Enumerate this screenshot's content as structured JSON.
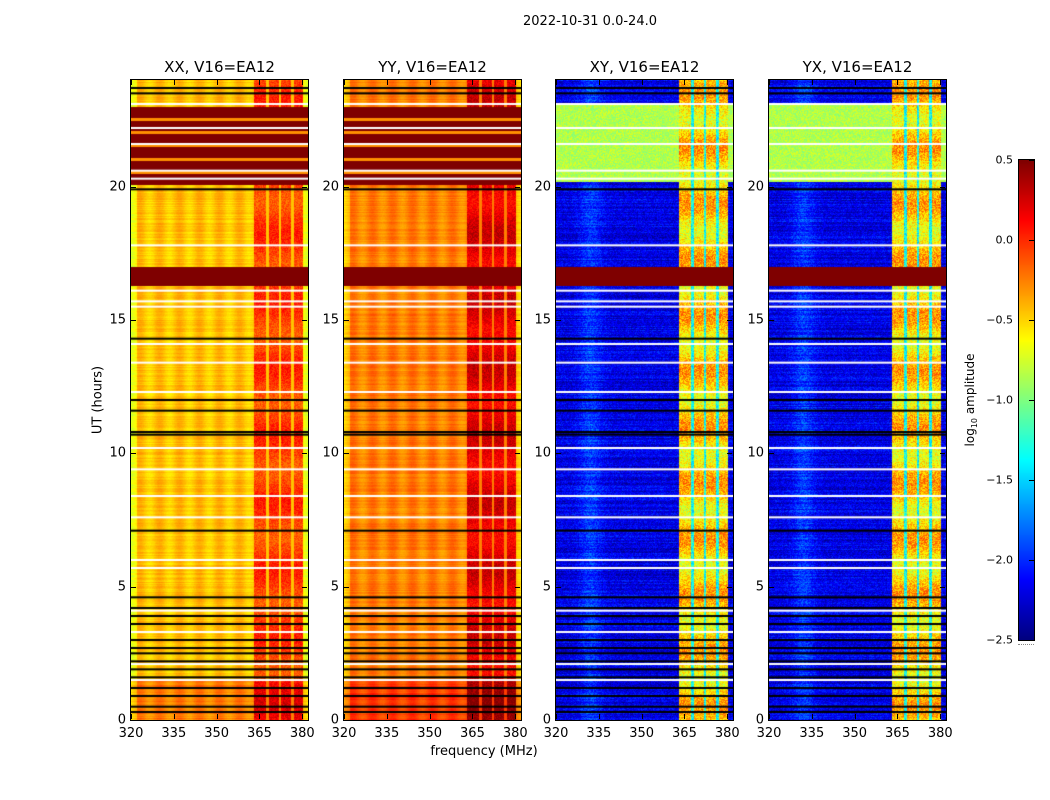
{
  "figure": {
    "suptitle": "2022-10-31 0.0-24.0",
    "xlabel": "frequency (MHz)",
    "ylabel": "UT (hours)",
    "colorbar": {
      "label_prefix": "log",
      "label_sub": "10",
      "label_suffix": " amplitude",
      "ticks": [
        "0.5",
        "0.0",
        "−0.5",
        "−1.0",
        "−1.5",
        "−2.0",
        "−2.5"
      ],
      "tick_values": [
        0.5,
        0.0,
        -0.5,
        -1.0,
        -1.5,
        -2.0,
        -2.5
      ],
      "range": [
        -2.5,
        0.5
      ],
      "colormap": "jet"
    }
  },
  "chart_data": {
    "type": "heatmap",
    "title": "2022-10-31 0.0-24.0",
    "xlabel": "frequency (MHz)",
    "ylabel": "UT (hours)",
    "xlim": [
      320,
      382
    ],
    "ylim": [
      0,
      24
    ],
    "xticks": [
      "320",
      "335",
      "350",
      "365",
      "380"
    ],
    "xtick_values": [
      320,
      335,
      350,
      365,
      380
    ],
    "yticks": [
      "0",
      "5",
      "10",
      "15",
      "20"
    ],
    "ytick_values": [
      0,
      5,
      10,
      15,
      20
    ],
    "color_range": [
      -2.5,
      0.5
    ],
    "colorbar_label": "log10 amplitude",
    "rfi_band_mhz": [
      363,
      380
    ],
    "rfi_gaps_mhz": [
      367.5,
      372,
      376.5
    ],
    "panels": [
      {
        "name": "XX",
        "title": "XX, V16=EA12",
        "base_level": -0.45,
        "rfi_level": -0.05,
        "saturated_hours": [
          [
            20.1,
            23.0
          ],
          [
            16.3,
            17.0
          ]
        ],
        "high_level_window": [
          20.1,
          23.0
        ]
      },
      {
        "name": "YY",
        "title": "YY, V16=EA12",
        "base_level": -0.25,
        "rfi_level": 0.2,
        "saturated_hours": [
          [
            20.1,
            23.0
          ],
          [
            16.3,
            17.0
          ]
        ],
        "high_level_window": [
          20.1,
          23.0
        ]
      },
      {
        "name": "XY",
        "title": "XY, V16=EA12",
        "base_level": -2.2,
        "rfi_level": -0.5,
        "saturated_hours": [
          [
            16.3,
            17.0
          ]
        ],
        "elevated_window": [
          20.2,
          23.1
        ],
        "elevated_level": -0.85
      },
      {
        "name": "YX",
        "title": "YX, V16=EA12",
        "base_level": -2.2,
        "rfi_level": -0.5,
        "saturated_hours": [
          [
            16.3,
            17.0
          ]
        ],
        "elevated_window": [
          20.2,
          23.1
        ],
        "elevated_level": -0.85
      }
    ],
    "flagged_white_hours": [
      23.1,
      22.2,
      21.6,
      20.6,
      20.3,
      17.8,
      16.1,
      15.7,
      15.5,
      14.1,
      13.4,
      12.3,
      10.2,
      9.4,
      8.4,
      7.6,
      6.0,
      5.7,
      4.1,
      3.3,
      2.1,
      1.5
    ],
    "flagged_black_hours": [
      23.7,
      23.5,
      19.9,
      14.3,
      12.0,
      11.6,
      10.8,
      10.7,
      7.1,
      4.6,
      4.2,
      3.9,
      3.6,
      3.0,
      2.7,
      2.5,
      2.2,
      1.9,
      1.6,
      1.2,
      0.9,
      0.5,
      0.3
    ]
  }
}
